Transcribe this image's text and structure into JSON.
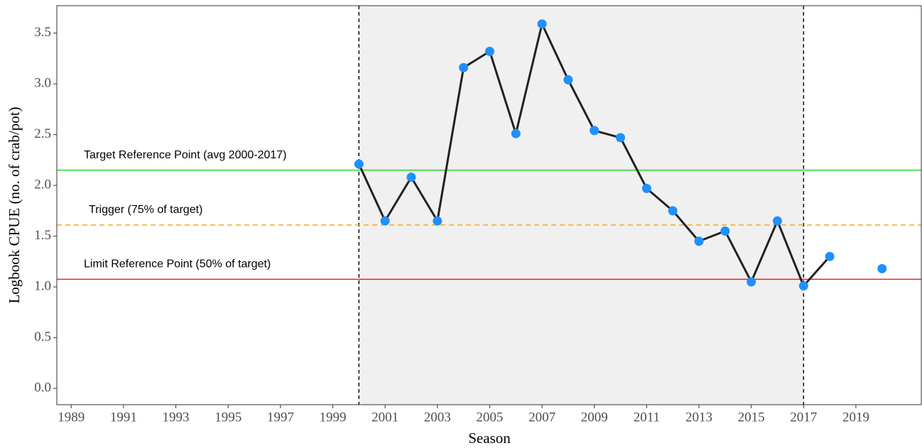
{
  "chart_data": {
    "type": "line",
    "x_label": "Season",
    "y_label": "Logbook CPUE (no. of crab/pot)",
    "x": [
      2000,
      2001,
      2002,
      2003,
      2004,
      2005,
      2006,
      2007,
      2008,
      2009,
      2010,
      2011,
      2012,
      2013,
      2014,
      2015,
      2016,
      2017,
      2018,
      2019,
      2020
    ],
    "series": [
      {
        "name": "Logbook CPUE",
        "color": "#1e90ff",
        "line_color": "#222222",
        "values": [
          2.21,
          1.65,
          2.08,
          1.65,
          3.16,
          3.32,
          2.51,
          3.59,
          3.04,
          2.54,
          2.47,
          1.97,
          1.75,
          1.45,
          1.55,
          1.05,
          1.65,
          1.01,
          1.3,
          null,
          1.18
        ]
      }
    ],
    "xlim": [
      1988.45,
      2021.5
    ],
    "xticks": [
      1989,
      1991,
      1993,
      1995,
      1997,
      1999,
      2001,
      2003,
      2005,
      2007,
      2009,
      2011,
      2013,
      2015,
      2017,
      2019
    ],
    "ylim": [
      -0.16,
      3.77
    ],
    "yticks": [
      {
        "value": 0,
        "label": "0.0"
      },
      0.5,
      {
        "value": 1,
        "label": "1.0"
      },
      1.5,
      {
        "value": 2,
        "label": "2.0"
      },
      2.5,
      {
        "value": 3,
        "label": "3.0"
      },
      3.5
    ],
    "shaded_range": [
      2000,
      2017
    ],
    "reference_lines": [
      {
        "label": "Target Reference Point (avg 2000-2017)",
        "value": 2.15,
        "color": "#22dd22",
        "dashed": false
      },
      {
        "label": "Trigger (75% of target)",
        "value": 1.61,
        "color": "#f5a623",
        "dashed": true
      },
      {
        "label": "Limit Reference Point (50% of target)",
        "value": 1.075,
        "color": "#ee2222",
        "dashed": false
      }
    ]
  }
}
